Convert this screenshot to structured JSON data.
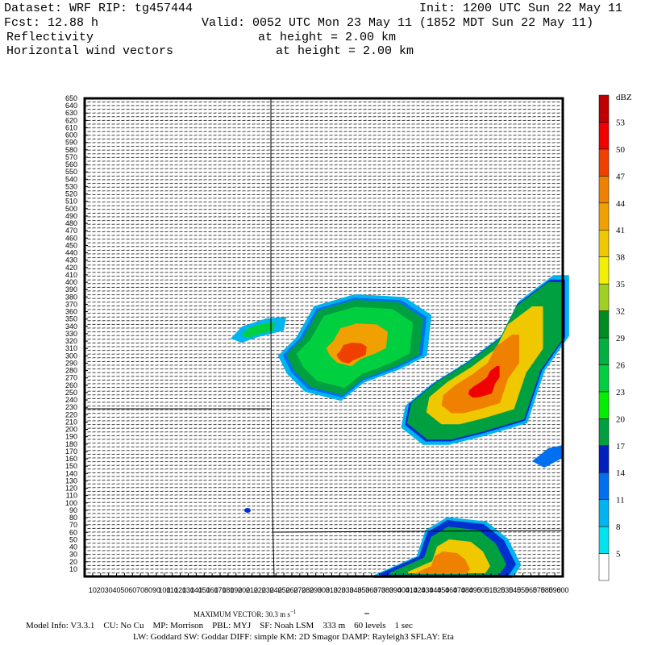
{
  "header": {
    "dataset": "Dataset: WRF  RIP: tg457444",
    "init": "Init: 1200 UTC Sun 22 May 11",
    "fcst": "Fcst:   12.88 h",
    "valid": "Valid: 0052 UTC Mon 23 May 11 (1852 MDT Sun 22 May 11)",
    "field1": "Reflectivity",
    "field1_height": "at height =  2.00 km",
    "field2": "Horizontal wind vectors",
    "field2_height": "at height =  2.00 km"
  },
  "plot": {
    "xlim": [
      0,
      600
    ],
    "ylim": [
      0,
      650
    ],
    "xticks": [
      10,
      20,
      30,
      40,
      50,
      60,
      70,
      80,
      90,
      100,
      110,
      120,
      130,
      140,
      150,
      160,
      170,
      180,
      190,
      200,
      210,
      220,
      230,
      240,
      250,
      260,
      270,
      280,
      290,
      300,
      310,
      320,
      330,
      340,
      350,
      360,
      370,
      380,
      390,
      400,
      410,
      420,
      430,
      440,
      450,
      460,
      470,
      480,
      490,
      500,
      510,
      520,
      530,
      540,
      550,
      560,
      570,
      580,
      590,
      600
    ],
    "yticks": [
      10,
      20,
      30,
      40,
      50,
      60,
      70,
      80,
      90,
      100,
      110,
      120,
      130,
      140,
      150,
      160,
      170,
      180,
      190,
      200,
      210,
      220,
      230,
      240,
      250,
      260,
      270,
      280,
      290,
      300,
      310,
      320,
      330,
      340,
      350,
      360,
      370,
      380,
      390,
      400,
      410,
      420,
      430,
      440,
      450,
      460,
      470,
      480,
      490,
      500,
      510,
      520,
      530,
      540,
      550,
      560,
      570,
      580,
      590,
      600,
      610,
      620,
      630,
      640,
      650
    ]
  },
  "colorbar": {
    "unit": "dBZ",
    "levels": [
      5,
      8,
      11,
      14,
      17,
      20,
      23,
      26,
      29,
      32,
      35,
      38,
      41,
      44,
      47,
      50,
      53
    ],
    "colors": [
      "#ffffff",
      "#00e4f0",
      "#00b4f0",
      "#0070f0",
      "#0020c0",
      "#00a040",
      "#00f000",
      "#00d040",
      "#00b040",
      "#008c20",
      "#a0d020",
      "#f0f000",
      "#f0c800",
      "#f0a000",
      "#f08000",
      "#f04000",
      "#f00000",
      "#c00000"
    ]
  },
  "footer": {
    "max_vector": "MAXIMUM VECTOR:  30.3 m s",
    "max_vector_exp": "−1",
    "model_info": "Model Info: V3.3.1    CU: No Cu    MP: Morrison    PBL: MYJ    SF: Noah LSM    333 m    60 levels    1 sec",
    "physics": "LW: Goddard SW: Goddar DIFF: simple KM: 2D Smagor DAMP: Rayleigh3  SFLAY: Eta"
  }
}
